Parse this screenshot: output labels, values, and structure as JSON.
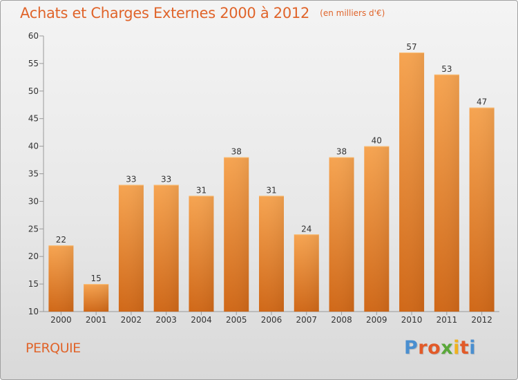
{
  "title": "Achats et Charges Externes 2000 à 2012",
  "unit_note": "(en milliers d'€)",
  "commune": "PERQUIE",
  "logo": {
    "letters": [
      "P",
      "r",
      "o",
      "x",
      "i",
      "t",
      "i"
    ],
    "colors": [
      "#4a8fd0",
      "#e25a28",
      "#e25a28",
      "#5aa83a",
      "#f0b21e",
      "#e25a28",
      "#4a8fd0"
    ]
  },
  "colors": {
    "bar_light": "#f6a451",
    "bar_dark": "#d06818",
    "accent": "#e0642a"
  },
  "chart_data": {
    "type": "bar",
    "title": "Achats et Charges Externes 2000 à 2012",
    "categories": [
      "2000",
      "2001",
      "2002",
      "2003",
      "2004",
      "2005",
      "2006",
      "2007",
      "2008",
      "2009",
      "2010",
      "2011",
      "2012"
    ],
    "values": [
      22,
      15,
      33,
      33,
      31,
      38,
      31,
      24,
      38,
      40,
      57,
      53,
      47
    ],
    "ylim": [
      10,
      60
    ],
    "yticks": [
      10,
      15,
      20,
      25,
      30,
      35,
      40,
      45,
      50,
      55,
      60
    ],
    "grid": false,
    "data_labels": true
  }
}
